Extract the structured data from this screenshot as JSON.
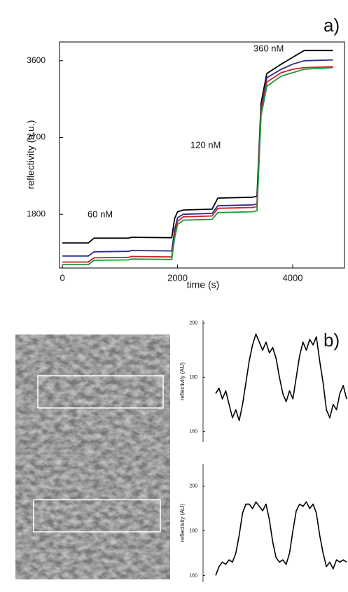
{
  "chart_data": [
    {
      "type": "line",
      "panel_label": "a)",
      "xlabel": "time (s)",
      "ylabel": "reflectivity (a.u.)",
      "annotations": [
        "60 nM",
        "120 nM",
        "360 nM"
      ],
      "x": [
        0,
        450,
        550,
        1150,
        1200,
        1900,
        1950,
        2000,
        2100,
        2600,
        2700,
        3300,
        3380,
        3450,
        3550,
        3800,
        4000,
        4200,
        4700
      ],
      "series": [
        {
          "color": "#000000",
          "values": [
            1464,
            1464,
            1520,
            1520,
            1530,
            1525,
            1750,
            1830,
            1850,
            1860,
            1990,
            2000,
            2010,
            3100,
            3450,
            3560,
            3640,
            3720,
            3720
          ]
        },
        {
          "color": "#2a2a8c",
          "values": [
            1310,
            1310,
            1360,
            1365,
            1375,
            1370,
            1620,
            1760,
            1800,
            1810,
            1900,
            1910,
            1920,
            3050,
            3400,
            3500,
            3560,
            3600,
            3610
          ]
        },
        {
          "color": "#cc2222",
          "values": [
            1240,
            1240,
            1290,
            1295,
            1305,
            1300,
            1560,
            1720,
            1770,
            1780,
            1870,
            1880,
            1890,
            3000,
            3350,
            3460,
            3500,
            3520,
            3530
          ]
        },
        {
          "color": "#1a9a3a",
          "values": [
            1210,
            1210,
            1260,
            1265,
            1275,
            1270,
            1520,
            1680,
            1730,
            1740,
            1820,
            1830,
            1840,
            2950,
            3300,
            3420,
            3460,
            3500,
            3520
          ]
        }
      ],
      "xlim": [
        -50,
        4900
      ],
      "ylim": [
        1170,
        3820
      ],
      "xticks": [
        0,
        2000,
        4000
      ],
      "yticks": [
        1800,
        2700,
        3600
      ]
    },
    {
      "type": "line",
      "panel_label": "b)",
      "ylabel": "reflectivity (AU)",
      "series": [
        {
          "color": "#000000",
          "values": [
            174,
            176,
            172,
            175,
            170,
            165,
            168,
            164,
            170,
            178,
            186,
            192,
            196,
            193,
            190,
            193,
            189,
            191,
            187,
            180,
            174,
            171,
            175,
            172,
            180,
            188,
            193,
            190,
            194,
            192,
            195,
            186,
            178,
            168,
            165,
            170,
            168,
            174,
            177,
            172
          ]
        }
      ],
      "ylim": [
        156,
        201
      ],
      "yticks": [
        160,
        180,
        200
      ]
    },
    {
      "type": "line",
      "ylabel": "reflectivity (AU)",
      "series": [
        {
          "color": "#000000",
          "values": [
            160,
            164,
            166,
            165,
            167,
            166,
            170,
            178,
            188,
            192,
            192,
            190,
            193,
            191,
            189,
            192,
            185,
            175,
            168,
            166,
            167,
            165,
            170,
            180,
            189,
            192,
            191,
            193,
            190,
            192,
            188,
            178,
            170,
            164,
            166,
            163,
            167,
            166,
            167,
            166
          ]
        }
      ],
      "ylim": [
        157,
        210
      ],
      "yticks": [
        160,
        180,
        200
      ]
    }
  ]
}
